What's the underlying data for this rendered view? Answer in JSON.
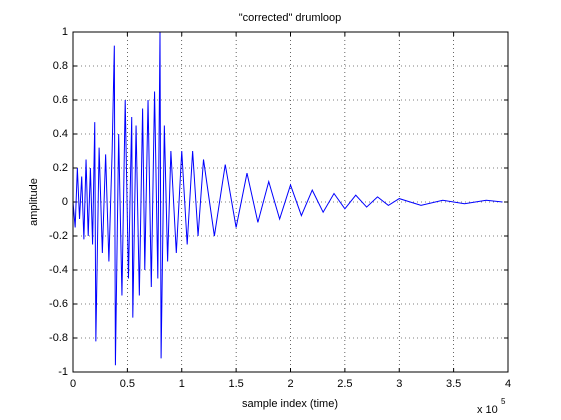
{
  "chart_data": {
    "type": "line",
    "title": "\"corrected\" drumloop",
    "x_label": "sample index (time)",
    "y_label": "amplitude",
    "x_scale_label": {
      "base": "x 10",
      "exponent": "5"
    },
    "x": [
      0,
      0.02,
      0.04,
      0.06,
      0.08,
      0.1,
      0.12,
      0.14,
      0.16,
      0.18,
      0.2,
      0.21,
      0.24,
      0.27,
      0.3,
      0.33,
      0.36,
      0.38,
      0.39,
      0.42,
      0.45,
      0.48,
      0.51,
      0.54,
      0.55,
      0.58,
      0.61,
      0.64,
      0.66,
      0.69,
      0.72,
      0.75,
      0.78,
      0.8,
      0.81,
      0.84,
      0.87,
      0.9,
      0.95,
      1.0,
      1.05,
      1.1,
      1.15,
      1.2,
      1.3,
      1.4,
      1.5,
      1.6,
      1.7,
      1.8,
      1.9,
      2.0,
      2.1,
      2.2,
      2.3,
      2.4,
      2.5,
      2.6,
      2.7,
      2.8,
      2.9,
      3.0,
      3.2,
      3.4,
      3.6,
      3.8,
      3.95
    ],
    "series": [
      {
        "name": "drumloop",
        "color": "#0000ff",
        "values": [
          0,
          -0.15,
          0.2,
          -0.1,
          0.15,
          -0.22,
          0.25,
          -0.2,
          0.2,
          -0.25,
          0.47,
          -0.82,
          0.32,
          -0.3,
          0.28,
          -0.35,
          0.3,
          0.92,
          -0.96,
          0.4,
          -0.55,
          0.6,
          -0.45,
          0.5,
          -0.68,
          0.45,
          -0.55,
          0.55,
          -0.4,
          0.6,
          -0.5,
          0.65,
          -0.45,
          1,
          -0.92,
          0.45,
          -0.35,
          0.3,
          -0.3,
          0.3,
          -0.25,
          0.3,
          -0.2,
          0.25,
          -0.2,
          0.22,
          -0.15,
          0.17,
          -0.12,
          0.12,
          -0.1,
          0.1,
          -0.08,
          0.07,
          -0.06,
          0.05,
          -0.04,
          0.04,
          -0.03,
          0.03,
          -0.02,
          0.02,
          -0.02,
          0.01,
          -0.01,
          0.01,
          0
        ]
      }
    ],
    "xlim": [
      0,
      4
    ],
    "xticks": [
      0,
      0.5,
      1,
      1.5,
      2,
      2.5,
      3,
      3.5,
      4
    ],
    "ylim": [
      -1,
      1
    ],
    "yticks": [
      -1,
      -0.8,
      -0.6,
      -0.4,
      -0.2,
      0,
      0.2,
      0.4,
      0.6,
      0.8,
      1
    ],
    "grid": true
  }
}
